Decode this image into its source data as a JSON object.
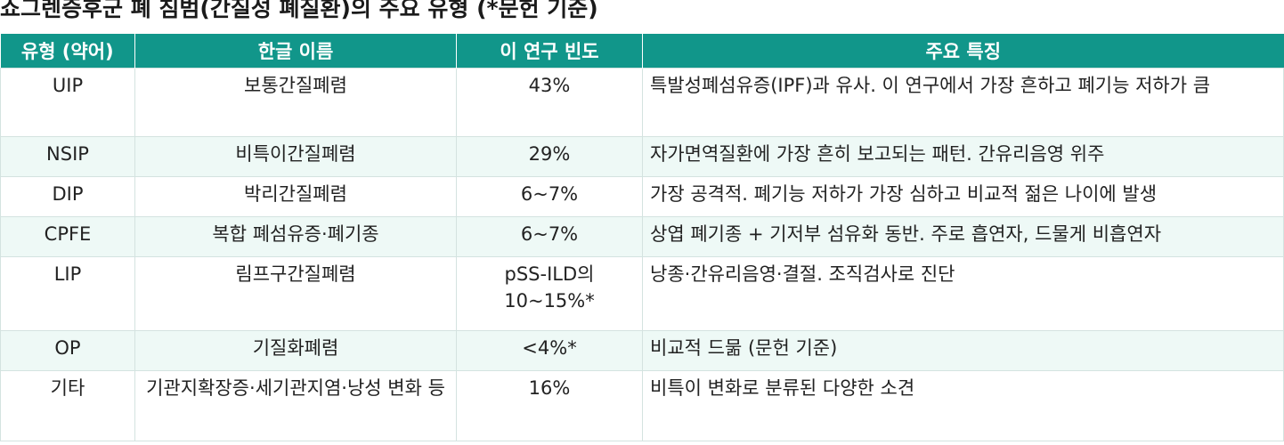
{
  "title": "쇼그렌증후군 폐 침범(간질성 폐질환)의 주요 유형 (*문헌 기준)",
  "table": {
    "headers": [
      "유형 (약어)",
      "한글 이름",
      "이 연구 빈도",
      "주요 특징"
    ],
    "rows": [
      [
        "UIP",
        "보통간질폐렴",
        "43%",
        "특발성폐섬유증(IPF)과 유사. 이 연구에서 가장 흔하고 폐기능 저하가 큼"
      ],
      [
        "NSIP",
        "비특이간질폐렴",
        "29%",
        "자가면역질환에 가장 흔히 보고되는 패턴. 간유리음영 위주"
      ],
      [
        "DIP",
        "박리간질폐렴",
        "6~7%",
        "가장 공격적. 폐기능 저하가 가장 심하고 비교적 젊은 나이에 발생"
      ],
      [
        "CPFE",
        "복합 폐섬유증·폐기종",
        "6~7%",
        "상엽 폐기종 + 기저부 섬유화 동반. 주로 흡연자, 드물게 비흡연자"
      ],
      [
        "LIP",
        "림프구간질폐렴",
        "pSS-ILD의 10~15%*",
        "낭종·간유리음영·결절. 조직검사로 진단"
      ],
      [
        "OP",
        "기질화폐렴",
        "<4%*",
        "비교적 드묾 (문헌 기준)"
      ],
      [
        "기타",
        "기관지확장증·세기관지염·낭성 변화 등",
        "16%",
        "비특이 변화로 분류된 다양한 소견"
      ]
    ]
  }
}
